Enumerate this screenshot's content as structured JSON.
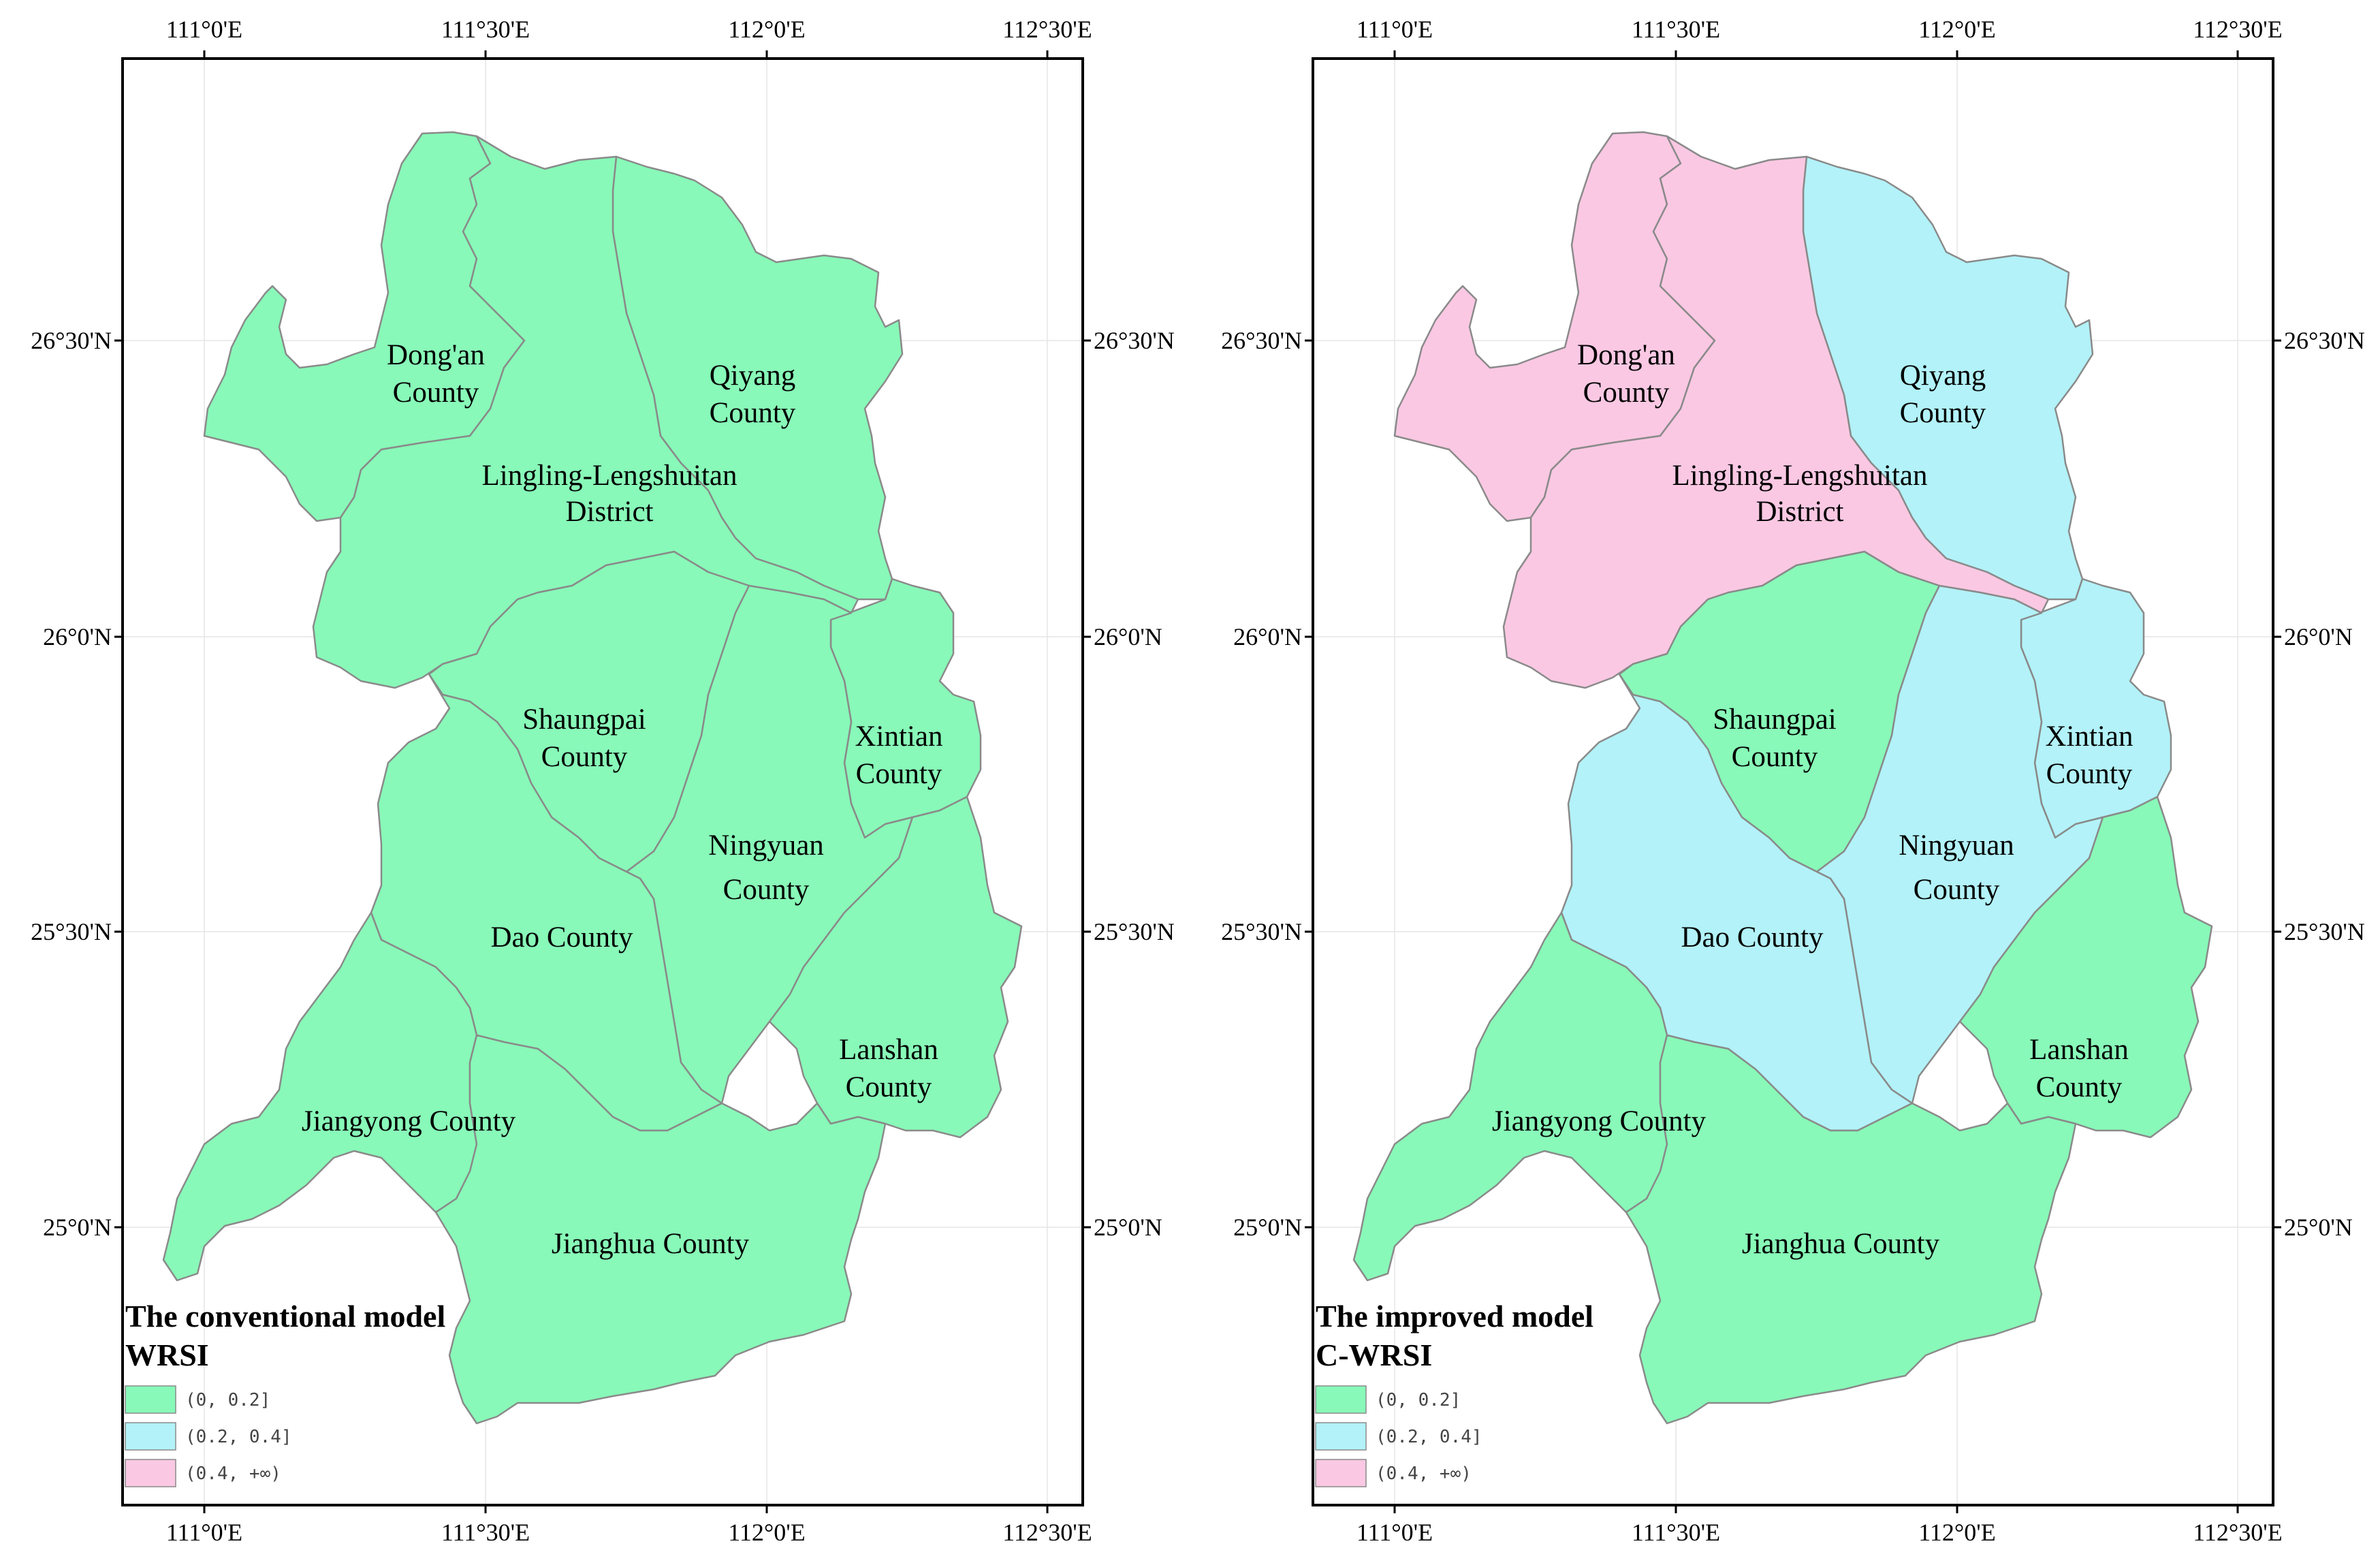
{
  "colors": {
    "class_low": "#88f9b8",
    "class_mid": "#b2f2f8",
    "class_high": "#fac8e3",
    "frame": "#000000",
    "boundary": "#8a8a8a"
  },
  "legend_classes": [
    "(0, 0.2]",
    "(0.2, 0.4]",
    "(0.4, +∞)"
  ],
  "axis_labels": {
    "lon": [
      "111°0'E",
      "111°30'E",
      "112°0'E",
      "112°30'E"
    ],
    "lat": [
      "26°30'N",
      "26°0'N",
      "25°30'N",
      "25°0'N"
    ]
  },
  "maps": [
    {
      "id": "conventional",
      "legend_title_line1": "The conventional model",
      "legend_title_line2": "WRSI",
      "counties": [
        {
          "line1": "Dong'an",
          "line2": "County",
          "class": 0
        },
        {
          "line1": "Qiyang",
          "line2": "County",
          "class": 0
        },
        {
          "line1": "Lingling-Lengshuitan",
          "line2": "District",
          "class": 0
        },
        {
          "line1": "Shaungpai",
          "line2": "County",
          "class": 0
        },
        {
          "line1": "Xintian",
          "line2": "County",
          "class": 0
        },
        {
          "line1": "Ningyuan",
          "line2": "County",
          "class": 0
        },
        {
          "line1": "Dao County",
          "line2": "",
          "class": 0
        },
        {
          "line1": "Lanshan",
          "line2": "County",
          "class": 0
        },
        {
          "line1": "Jiangyong County",
          "line2": "",
          "class": 0
        },
        {
          "line1": "Jianghua County",
          "line2": "",
          "class": 0
        }
      ]
    },
    {
      "id": "improved",
      "legend_title_line1": "The improved model",
      "legend_title_line2": "C-WRSI",
      "counties": [
        {
          "line1": "Dong'an",
          "line2": "County",
          "class": 2
        },
        {
          "line1": "Qiyang",
          "line2": "County",
          "class": 1
        },
        {
          "line1": "Lingling-Lengshuitan",
          "line2": "District",
          "class": 2
        },
        {
          "line1": "Shaungpai",
          "line2": "County",
          "class": 0
        },
        {
          "line1": "Xintian",
          "line2": "County",
          "class": 1
        },
        {
          "line1": "Ningyuan",
          "line2": "County",
          "class": 1
        },
        {
          "line1": "Dao County",
          "line2": "",
          "class": 1
        },
        {
          "line1": "Lanshan",
          "line2": "County",
          "class": 0
        },
        {
          "line1": "Jiangyong County",
          "line2": "",
          "class": 0
        },
        {
          "line1": "Jianghua County",
          "line2": "",
          "class": 0
        }
      ]
    }
  ]
}
